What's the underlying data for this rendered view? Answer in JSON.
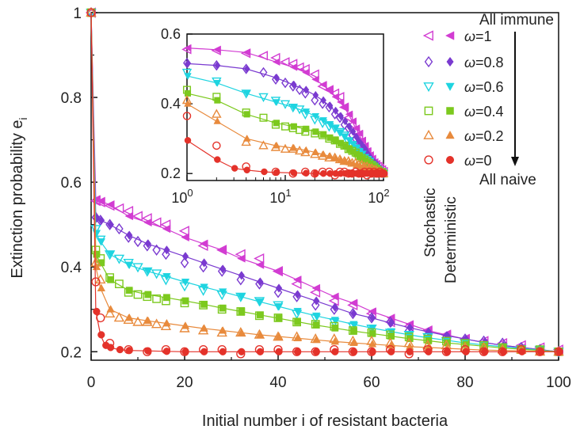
{
  "chart_data": {
    "type": "scatter",
    "title": "",
    "xlabel": "Initial number i of resistant bacteria",
    "ylabel": "Extinction probability e",
    "ylabel_subscript": "i",
    "xlim": [
      0,
      100
    ],
    "ylim": [
      0.18,
      1.0
    ],
    "x_ticks": [
      "0",
      "20",
      "40",
      "60",
      "80",
      "100"
    ],
    "y_ticks": [
      "0.2",
      "0.4",
      "0.6",
      "0.8",
      "1"
    ],
    "grid": false,
    "legend": {
      "placement": "top-right",
      "top_label": "All immune",
      "bottom_label": "All naive",
      "stochastic_label": "Stochastic",
      "deterministic_label": "Deterministic",
      "entries": [
        "ω=1",
        "ω=0.8",
        "ω=0.6",
        "ω=0.4",
        "ω=0.2",
        "ω=0"
      ]
    },
    "series": [
      {
        "name": "ω=1",
        "color": "#d23cd2",
        "marker": "triangle-left",
        "stochastic": {
          "x": [
            0,
            1,
            2,
            4,
            6,
            8,
            10,
            12,
            14,
            16,
            20,
            24,
            28,
            32,
            36,
            40,
            44,
            48,
            52,
            56,
            60,
            64,
            68,
            72,
            76,
            80,
            84,
            88,
            92,
            96,
            100
          ],
          "y": [
            1.0,
            0.556,
            0.553,
            0.545,
            0.538,
            0.532,
            0.52,
            0.515,
            0.505,
            0.5,
            0.485,
            0.45,
            0.44,
            0.43,
            0.42,
            0.39,
            0.36,
            0.34,
            0.32,
            0.31,
            0.29,
            0.27,
            0.26,
            0.25,
            0.24,
            0.23,
            0.225,
            0.22,
            0.215,
            0.21,
            0.205
          ]
        },
        "deterministic": {
          "x": [
            0,
            1,
            2,
            4,
            8,
            12,
            16,
            20,
            24,
            28,
            32,
            36,
            40,
            44,
            48,
            52,
            56,
            60,
            64,
            68,
            72,
            76,
            80,
            84,
            88,
            92,
            96,
            100
          ],
          "y": [
            1.0,
            0.56,
            0.555,
            0.547,
            0.52,
            0.505,
            0.49,
            0.47,
            0.455,
            0.44,
            0.42,
            0.405,
            0.39,
            0.37,
            0.35,
            0.33,
            0.315,
            0.295,
            0.28,
            0.265,
            0.25,
            0.24,
            0.23,
            0.222,
            0.215,
            0.21,
            0.205,
            0.2
          ]
        }
      },
      {
        "name": "ω=0.8",
        "color": "#7a3ad0",
        "marker": "diamond",
        "stochastic": {
          "x": [
            0,
            1,
            2,
            4,
            6,
            8,
            10,
            12,
            14,
            16,
            20,
            24,
            28,
            32,
            36,
            40,
            44,
            48,
            52,
            56,
            60,
            64,
            68,
            72,
            76,
            80,
            84,
            88,
            92,
            96,
            100
          ],
          "y": [
            1.0,
            0.517,
            0.51,
            0.5,
            0.49,
            0.47,
            0.46,
            0.45,
            0.44,
            0.43,
            0.41,
            0.4,
            0.39,
            0.37,
            0.36,
            0.34,
            0.33,
            0.31,
            0.3,
            0.29,
            0.28,
            0.27,
            0.25,
            0.24,
            0.235,
            0.23,
            0.225,
            0.22,
            0.21,
            0.205,
            0.2
          ]
        },
        "deterministic": {
          "x": [
            0,
            1,
            2,
            4,
            8,
            12,
            16,
            20,
            24,
            28,
            32,
            36,
            40,
            44,
            48,
            52,
            56,
            60,
            64,
            68,
            72,
            76,
            80,
            84,
            88,
            92,
            96,
            100
          ],
          "y": [
            1.0,
            0.515,
            0.51,
            0.5,
            0.475,
            0.455,
            0.44,
            0.425,
            0.41,
            0.395,
            0.38,
            0.365,
            0.35,
            0.335,
            0.32,
            0.305,
            0.29,
            0.28,
            0.268,
            0.257,
            0.247,
            0.238,
            0.23,
            0.222,
            0.215,
            0.21,
            0.205,
            0.2
          ]
        }
      },
      {
        "name": "ω=0.6",
        "color": "#1ed4e0",
        "marker": "triangle-down",
        "stochastic": {
          "x": [
            0,
            1,
            2,
            4,
            6,
            8,
            10,
            12,
            14,
            16,
            20,
            24,
            28,
            32,
            36,
            40,
            44,
            48,
            52,
            56,
            60,
            64,
            68,
            72,
            76,
            80,
            84,
            88,
            92,
            96,
            100
          ],
          "y": [
            1.0,
            0.49,
            0.465,
            0.43,
            0.42,
            0.41,
            0.4,
            0.39,
            0.385,
            0.37,
            0.355,
            0.345,
            0.335,
            0.33,
            0.32,
            0.31,
            0.29,
            0.28,
            0.27,
            0.26,
            0.255,
            0.245,
            0.24,
            0.235,
            0.225,
            0.22,
            0.215,
            0.21,
            0.205,
            0.205,
            0.2
          ]
        },
        "deterministic": {
          "x": [
            0,
            1,
            2,
            4,
            8,
            12,
            16,
            20,
            24,
            28,
            32,
            36,
            40,
            44,
            48,
            52,
            56,
            60,
            64,
            68,
            72,
            76,
            80,
            84,
            88,
            92,
            96,
            100
          ],
          "y": [
            1.0,
            0.48,
            0.46,
            0.43,
            0.405,
            0.39,
            0.378,
            0.365,
            0.353,
            0.342,
            0.33,
            0.318,
            0.307,
            0.296,
            0.285,
            0.275,
            0.265,
            0.256,
            0.248,
            0.24,
            0.233,
            0.227,
            0.221,
            0.216,
            0.212,
            0.208,
            0.204,
            0.2
          ]
        }
      },
      {
        "name": "ω=0.4",
        "color": "#7cc91e",
        "marker": "square",
        "stochastic": {
          "x": [
            0,
            1,
            2,
            4,
            6,
            8,
            10,
            12,
            14,
            16,
            20,
            24,
            28,
            32,
            36,
            40,
            44,
            48,
            52,
            56,
            60,
            64,
            68,
            72,
            76,
            80,
            84,
            88,
            92,
            96,
            100
          ],
          "y": [
            1.0,
            0.44,
            0.42,
            0.375,
            0.36,
            0.34,
            0.335,
            0.33,
            0.325,
            0.32,
            0.315,
            0.31,
            0.3,
            0.295,
            0.285,
            0.28,
            0.27,
            0.265,
            0.26,
            0.25,
            0.245,
            0.24,
            0.235,
            0.23,
            0.225,
            0.22,
            0.215,
            0.21,
            0.205,
            0.205,
            0.2
          ]
        },
        "deterministic": {
          "x": [
            0,
            1,
            2,
            4,
            8,
            12,
            16,
            20,
            24,
            28,
            32,
            36,
            40,
            44,
            48,
            52,
            56,
            60,
            64,
            68,
            72,
            76,
            80,
            84,
            88,
            92,
            96,
            100
          ],
          "y": [
            1.0,
            0.43,
            0.41,
            0.37,
            0.345,
            0.335,
            0.328,
            0.32,
            0.312,
            0.303,
            0.295,
            0.287,
            0.279,
            0.271,
            0.263,
            0.256,
            0.249,
            0.243,
            0.237,
            0.231,
            0.226,
            0.221,
            0.217,
            0.213,
            0.209,
            0.206,
            0.203,
            0.2
          ]
        }
      },
      {
        "name": "ω=0.2",
        "color": "#e88a3c",
        "marker": "triangle-up",
        "stochastic": {
          "x": [
            0,
            1,
            2,
            4,
            6,
            8,
            10,
            12,
            14,
            16,
            20,
            24,
            28,
            32,
            36,
            40,
            44,
            48,
            52,
            56,
            60,
            64,
            68,
            72,
            76,
            80,
            84,
            88,
            92,
            96,
            100
          ],
          "y": [
            1.0,
            0.41,
            0.37,
            0.29,
            0.28,
            0.275,
            0.27,
            0.27,
            0.265,
            0.26,
            0.255,
            0.25,
            0.245,
            0.245,
            0.24,
            0.235,
            0.235,
            0.23,
            0.23,
            0.225,
            0.225,
            0.22,
            0.22,
            0.215,
            0.215,
            0.21,
            0.21,
            0.205,
            0.205,
            0.2,
            0.2
          ]
        },
        "deterministic": {
          "x": [
            0,
            1,
            2,
            4,
            8,
            12,
            16,
            20,
            24,
            28,
            32,
            36,
            40,
            44,
            48,
            52,
            56,
            60,
            64,
            68,
            72,
            76,
            80,
            84,
            88,
            92,
            96,
            100
          ],
          "y": [
            1.0,
            0.4,
            0.35,
            0.3,
            0.28,
            0.273,
            0.267,
            0.261,
            0.255,
            0.25,
            0.245,
            0.24,
            0.236,
            0.232,
            0.228,
            0.224,
            0.221,
            0.218,
            0.215,
            0.212,
            0.21,
            0.208,
            0.206,
            0.204,
            0.203,
            0.202,
            0.201,
            0.2
          ]
        }
      },
      {
        "name": "ω=0",
        "color": "#e4322a",
        "marker": "circle",
        "stochastic": {
          "x": [
            0,
            1,
            2,
            4,
            8,
            12,
            16,
            20,
            24,
            28,
            32,
            36,
            40,
            44,
            48,
            52,
            56,
            60,
            64,
            68,
            72,
            76,
            80,
            84,
            88,
            92,
            96,
            100
          ],
          "y": [
            1.0,
            0.365,
            0.28,
            0.22,
            0.205,
            0.2,
            0.205,
            0.2,
            0.205,
            0.205,
            0.195,
            0.205,
            0.205,
            0.2,
            0.2,
            0.205,
            0.2,
            0.2,
            0.205,
            0.195,
            0.205,
            0.2,
            0.205,
            0.2,
            0.2,
            0.205,
            0.2,
            0.2
          ]
        },
        "deterministic": {
          "x": [
            0,
            1,
            2,
            3,
            4,
            6,
            8,
            12,
            16,
            20,
            24,
            28,
            32,
            36,
            40,
            44,
            48,
            52,
            56,
            60,
            64,
            68,
            72,
            76,
            80,
            84,
            88,
            92,
            96,
            100
          ],
          "y": [
            1.0,
            0.295,
            0.24,
            0.215,
            0.21,
            0.205,
            0.203,
            0.202,
            0.201,
            0.2,
            0.2,
            0.2,
            0.2,
            0.2,
            0.2,
            0.2,
            0.2,
            0.2,
            0.2,
            0.2,
            0.2,
            0.2,
            0.2,
            0.2,
            0.2,
            0.2,
            0.2,
            0.2,
            0.2,
            0.2
          ]
        }
      }
    ],
    "inset": {
      "xscale": "log",
      "xlim": [
        1,
        100
      ],
      "ylim": [
        0.18,
        0.6
      ],
      "x_tick_base": "10",
      "x_tick_exponents": [
        "0",
        "1",
        "2"
      ],
      "y_ticks": [
        "0.2",
        "0.4",
        "0.6"
      ]
    }
  }
}
